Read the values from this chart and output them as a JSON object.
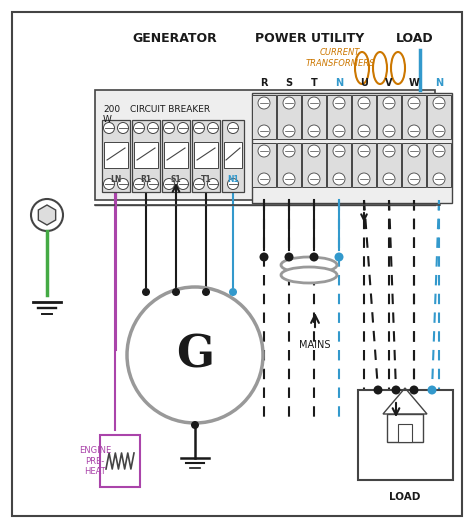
{
  "bg_color": "#ffffff",
  "colors": {
    "black": "#1a1a1a",
    "blue": "#3399cc",
    "orange": "#cc7700",
    "green": "#44aa44",
    "purple": "#aa44aa",
    "gray": "#999999",
    "dark_gray": "#444444",
    "light_gray": "#dddddd",
    "white": "#ffffff",
    "panel_bg": "#eeeeee"
  },
  "labels": {
    "generator": "GENERATOR",
    "power_utility": "POWER UTILITY",
    "load_title": "LOAD",
    "current_transformers": "CURRENT\nTRANSFORMERS",
    "circuit_breaker": "CIRCUIT BREAKER",
    "200w": "200\nW",
    "mains": "MAINS",
    "load_bottom": "LOAD",
    "engine_preheat": "ENGINE\nPRE-\nHEAT",
    "n1": "N1",
    "ln": "LN",
    "r1": "R1",
    "s1": "S1",
    "t1": "T1",
    "g_label": "G",
    "term_labels": [
      "R",
      "S",
      "T",
      "N",
      "U",
      "V",
      "W",
      "N"
    ]
  }
}
